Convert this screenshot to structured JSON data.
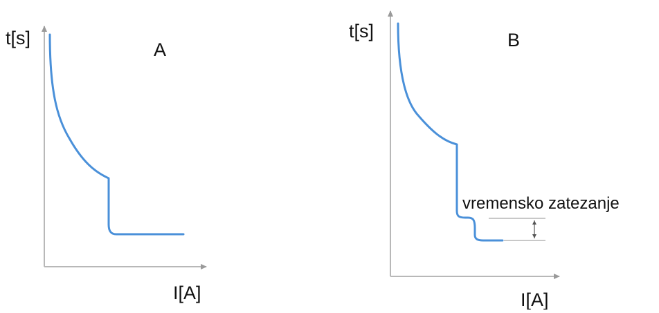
{
  "colors": {
    "curve": "#4a90d9",
    "axis": "#b8b8b8",
    "text": "#111111"
  },
  "diagram_a": {
    "y_axis_label": "t[s]",
    "x_axis_label": "I[A]",
    "panel_label": "A"
  },
  "diagram_b": {
    "y_axis_label": "t[s]",
    "x_axis_label": "I[A]",
    "panel_label": "B",
    "annotation": "vremensko zatezanje"
  }
}
